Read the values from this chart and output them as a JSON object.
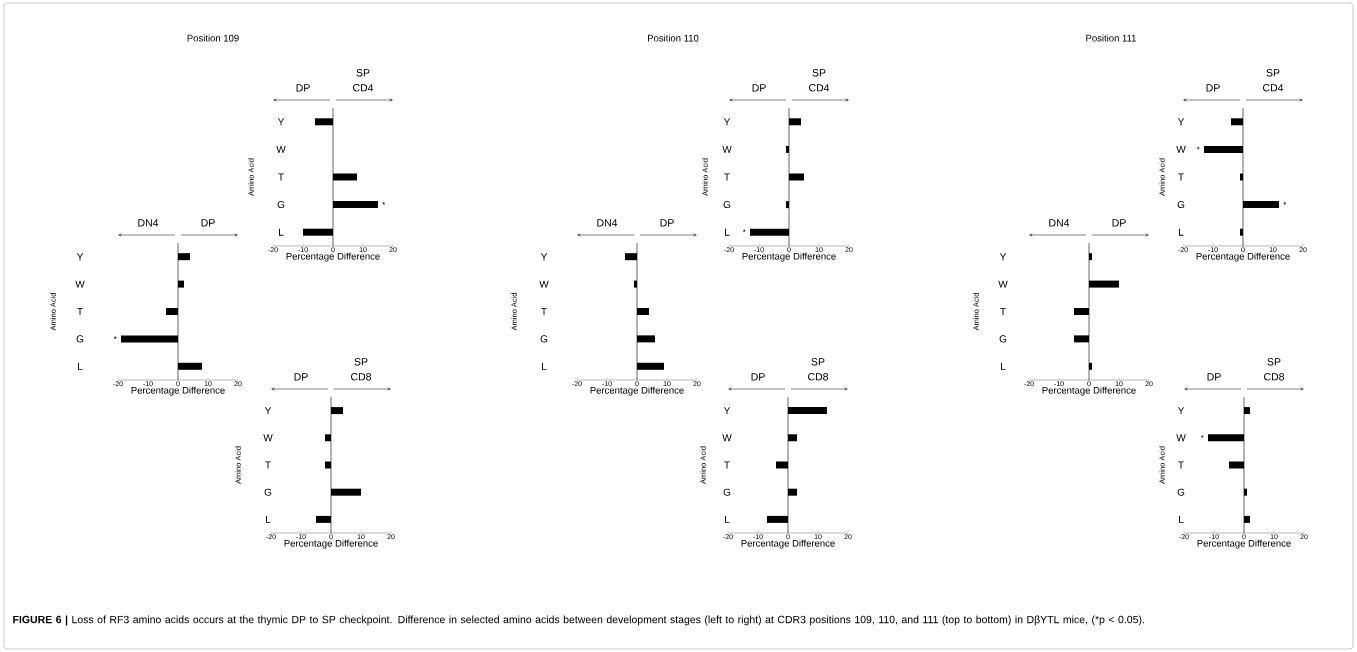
{
  "chart_data": [
    {
      "type": "bar",
      "orientation": "horizontal",
      "title": "Position 109",
      "categories": [
        "Y",
        "W",
        "T",
        "G",
        "L"
      ],
      "values": [
        4,
        2,
        -4,
        -19,
        8
      ],
      "color": "#000000",
      "xlim": [
        -20,
        20
      ],
      "xticks": [
        -20,
        -10,
        0,
        10,
        20
      ],
      "xlabel": "Percentage Difference",
      "ylabel": "Amino Acid",
      "ref_lines": [
        {
          "axis": "x",
          "value": 0
        }
      ],
      "annotations": [
        "DN4",
        "DP",
        "FIGURE 6 |",
        "Loss of RF3 amino acids occurs at the thymic DP to SP checkpoint. Difference in selected amino acids between development stages (left to right) at CDR3 positions 109, 110, and 111 (top to bottom) in DβYTL mice, (*p < 0.05).",
        {
          "text": "*",
          "x": -19,
          "y": "G"
        }
      ]
    },
    {
      "type": "bar",
      "orientation": "horizontal",
      "categories": [
        "Y",
        "W",
        "T",
        "G",
        "L"
      ],
      "values": [
        -6,
        0,
        8,
        15,
        -10
      ],
      "color": "#000000",
      "xlim": [
        -20,
        20
      ],
      "xticks": [
        -20,
        -10,
        0,
        10,
        20
      ],
      "xlabel": "Percentage Difference",
      "ylabel": "Amino Acid",
      "ref_lines": [
        {
          "axis": "x",
          "value": 0
        }
      ],
      "annotations": [
        "DP",
        "SP CD4",
        {
          "text": "*",
          "x": 15,
          "y": "G"
        }
      ]
    },
    {
      "type": "bar",
      "orientation": "horizontal",
      "categories": [
        "Y",
        "W",
        "T",
        "G",
        "L"
      ],
      "values": [
        4,
        -2,
        -2,
        10,
        -5
      ],
      "color": "#000000",
      "xlim": [
        -20,
        20
      ],
      "xticks": [
        -20,
        -10,
        0,
        10,
        20
      ],
      "xlabel": "Percentage Difference",
      "ylabel": "Amino Acid",
      "ref_lines": [
        {
          "axis": "x",
          "value": 0
        }
      ],
      "annotations": [
        "DP",
        "SP CD8"
      ]
    },
    {
      "type": "bar",
      "orientation": "horizontal",
      "title": "Position 110",
      "categories": [
        "Y",
        "W",
        "T",
        "G",
        "L"
      ],
      "values": [
        -4,
        -1,
        4,
        6,
        9
      ],
      "color": "#000000",
      "xlim": [
        -20,
        20
      ],
      "xticks": [
        -20,
        -10,
        0,
        10,
        20
      ],
      "xlabel": "Percentage Difference",
      "ylabel": "Amino Acid",
      "ref_lines": [
        {
          "axis": "x",
          "value": 0
        }
      ],
      "annotations": [
        "DN4",
        "DP"
      ]
    },
    {
      "type": "bar",
      "orientation": "horizontal",
      "categories": [
        "Y",
        "W",
        "T",
        "G",
        "L"
      ],
      "values": [
        4,
        -1,
        5,
        -1,
        -13
      ],
      "color": "#000000",
      "xlim": [
        -20,
        20
      ],
      "xticks": [
        -20,
        -10,
        0,
        10,
        20
      ],
      "xlabel": "Percentage Difference",
      "ylabel": "Amino Acid",
      "ref_lines": [
        {
          "axis": "x",
          "value": 0
        }
      ],
      "annotations": [
        "DP",
        "SP CD4",
        {
          "text": "*",
          "x": -13,
          "y": "L"
        }
      ]
    },
    {
      "type": "bar",
      "orientation": "horizontal",
      "categories": [
        "Y",
        "W",
        "T",
        "G",
        "L"
      ],
      "values": [
        13,
        3,
        -4,
        3,
        -7
      ],
      "color": "#000000",
      "xlim": [
        -20,
        20
      ],
      "xticks": [
        -20,
        -10,
        0,
        10,
        20
      ],
      "xlabel": "Percentage Difference",
      "ylabel": "Amino Acid",
      "ref_lines": [
        {
          "axis": "x",
          "value": 0
        }
      ],
      "annotations": [
        "DP",
        "SP CD8"
      ]
    },
    {
      "type": "bar",
      "orientation": "horizontal",
      "title": "Position 111",
      "categories": [
        "Y",
        "W",
        "T",
        "G",
        "L"
      ],
      "values": [
        1,
        10,
        -5,
        -5,
        1
      ],
      "color": "#000000",
      "xlim": [
        -20,
        20
      ],
      "xticks": [
        -20,
        -10,
        0,
        10,
        20
      ],
      "xlabel": "Percentage Difference",
      "ylabel": "Amino Acid",
      "ref_lines": [
        {
          "axis": "x",
          "value": 0
        }
      ],
      "annotations": [
        "DN4",
        "DP"
      ]
    },
    {
      "type": "bar",
      "orientation": "horizontal",
      "categories": [
        "Y",
        "W",
        "T",
        "G",
        "L"
      ],
      "values": [
        -4,
        -13,
        -1,
        12,
        -1
      ],
      "color": "#000000",
      "xlim": [
        -20,
        20
      ],
      "xticks": [
        -20,
        -10,
        0,
        10,
        20
      ],
      "xlabel": "Percentage Difference",
      "ylabel": "Amino Acid",
      "ref_lines": [
        {
          "axis": "x",
          "value": 0
        }
      ],
      "annotations": [
        "DP",
        "SP CD4",
        {
          "text": "*",
          "x": -13,
          "y": "W"
        },
        {
          "text": "*",
          "x": 12,
          "y": "G"
        }
      ]
    },
    {
      "type": "bar",
      "orientation": "horizontal",
      "categories": [
        "Y",
        "W",
        "T",
        "G",
        "L"
      ],
      "values": [
        2,
        -12,
        -5,
        1,
        2
      ],
      "color": "#000000",
      "xlim": [
        -20,
        20
      ],
      "xticks": [
        -20,
        -10,
        0,
        10,
        20
      ],
      "xlabel": "Percentage Difference",
      "ylabel": "Amino Acid",
      "ref_lines": [
        {
          "axis": "x",
          "value": 0
        }
      ],
      "annotations": [
        "DP",
        "SP CD8",
        {
          "text": "*",
          "x": -12,
          "y": "W"
        }
      ]
    }
  ]
}
